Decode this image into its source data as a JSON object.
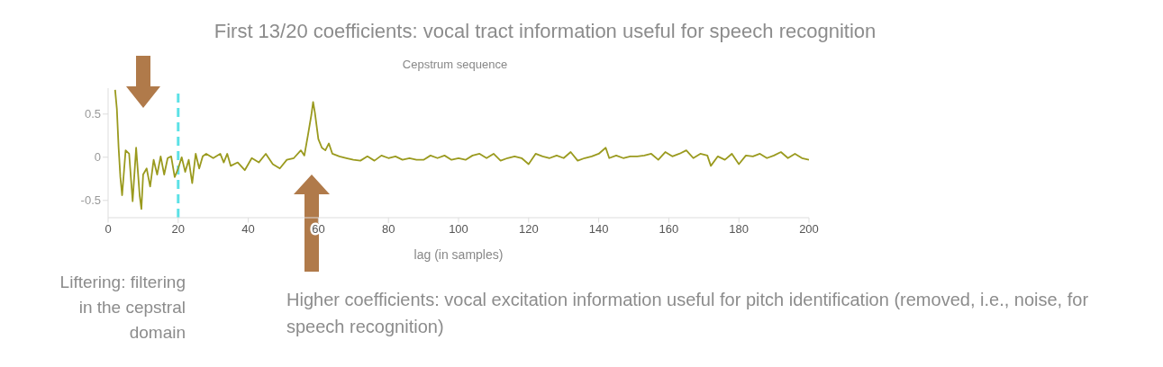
{
  "chart_data": {
    "type": "line",
    "title": "Cepstrum sequence",
    "xlabel": "lag (in samples)",
    "annotations": [
      "First 13/20 coefficients: vocal tract information useful for speech recognition",
      "Liftering: filtering in the cepstral domain",
      "Higher coefficients: vocal excitation information useful for pitch identification (removed, i.e., noise, for speech recognition)"
    ],
    "x": [
      2,
      2.5,
      3,
      3.5,
      4,
      5,
      6,
      7,
      8,
      9,
      9.5,
      10,
      11,
      12,
      13,
      14,
      15,
      16,
      17,
      18,
      19,
      20,
      21,
      22,
      23,
      24,
      25,
      26,
      27,
      28,
      30,
      32,
      33,
      34,
      35,
      37,
      39,
      41,
      43,
      45,
      47,
      49,
      51,
      53,
      55,
      56,
      57,
      58,
      58.5,
      59,
      60,
      61,
      62,
      63,
      64,
      66,
      68,
      70,
      72,
      74,
      76,
      78,
      80,
      82,
      84,
      86,
      88,
      90,
      92,
      94,
      96,
      98,
      100,
      102,
      104,
      106,
      108,
      110,
      112,
      114,
      116,
      118,
      120,
      122,
      124,
      126,
      128,
      130,
      132,
      134,
      136,
      138,
      140,
      142,
      143,
      145,
      147,
      149,
      151,
      153,
      155,
      157,
      159,
      161,
      163,
      165,
      167,
      169,
      171,
      172,
      174,
      176,
      178,
      180,
      182,
      184,
      186,
      188,
      190,
      192,
      194,
      196,
      198,
      200
    ],
    "series": [
      {
        "color": "#9a9a1e",
        "values": [
          0.78,
          0.56,
          0.11,
          -0.23,
          -0.44,
          0.08,
          0.04,
          -0.51,
          0.11,
          -0.44,
          -0.6,
          -0.2,
          -0.13,
          -0.34,
          -0.03,
          -0.2,
          0.01,
          -0.2,
          -0.01,
          0.01,
          -0.23,
          -0.13,
          0,
          -0.17,
          -0.03,
          -0.3,
          0.04,
          -0.13,
          0.01,
          0.04,
          -0.01,
          0.04,
          -0.06,
          0.04,
          -0.1,
          -0.06,
          -0.15,
          -0.01,
          -0.06,
          0.04,
          -0.08,
          -0.13,
          -0.03,
          -0.01,
          0.08,
          0.02,
          0.25,
          0.49,
          0.64,
          0.52,
          0.21,
          0.11,
          0.08,
          0.16,
          0.04,
          0.01,
          -0.01,
          -0.03,
          -0.04,
          0.01,
          -0.04,
          0.02,
          -0.01,
          0.01,
          -0.03,
          -0.01,
          -0.03,
          -0.03,
          0.02,
          -0.01,
          0.02,
          -0.03,
          -0.01,
          -0.03,
          0.02,
          0.04,
          -0.01,
          0.04,
          -0.04,
          -0.01,
          0.01,
          -0.01,
          -0.08,
          0.04,
          0.01,
          -0.01,
          0.02,
          -0.01,
          0.06,
          -0.04,
          -0.01,
          0.01,
          0.04,
          0.11,
          -0.01,
          0.02,
          -0.01,
          0.01,
          0.01,
          0.02,
          0.04,
          -0.03,
          0.06,
          0.01,
          0.04,
          0.08,
          -0.01,
          0.04,
          0.02,
          -0.1,
          0.01,
          -0.03,
          0.04,
          -0.08,
          0.02,
          0.01,
          0.04,
          -0.01,
          0.02,
          0.06,
          -0.01,
          0.04,
          -0.01,
          -0.03
        ]
      }
    ],
    "xlim": [
      0,
      200
    ],
    "xticks": [
      0,
      20,
      40,
      60,
      80,
      100,
      120,
      140,
      160,
      180,
      200
    ],
    "ylim": [
      -0.7,
      0.8
    ],
    "yticks": [
      -0.5,
      0,
      0.5
    ],
    "grid": false,
    "legend": false,
    "marker": "none",
    "line_style": "solid",
    "ref_lines": [
      {
        "axis": "x",
        "value": 20,
        "color": "#5ce1e6",
        "line_style": "dashed"
      }
    ]
  }
}
